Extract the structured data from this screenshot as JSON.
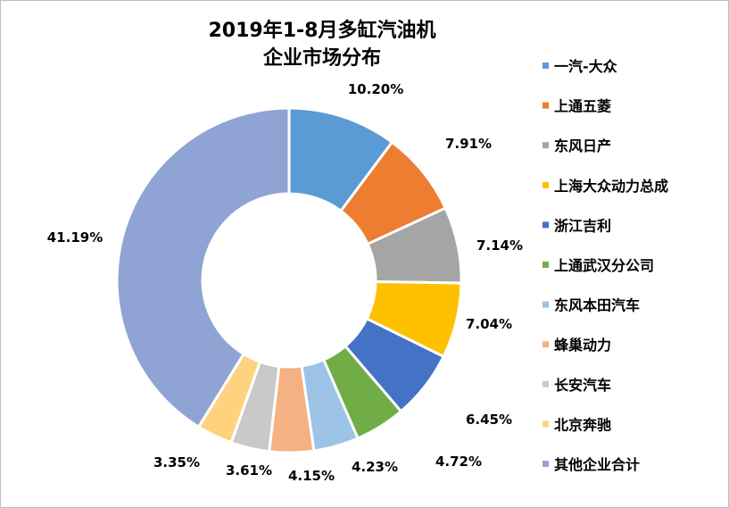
{
  "chart_data": {
    "type": "pie",
    "subtype": "donut",
    "title_line1": "2019年1-8月多缸汽油机",
    "title_line2": "企业市场分布",
    "legend_position": "right",
    "slices": [
      {
        "name": "一汽-大众",
        "value": 10.2,
        "label": "10.20%",
        "color": "#5b9bd5"
      },
      {
        "name": "上通五菱",
        "value": 7.91,
        "label": "7.91%",
        "color": "#ed7d31"
      },
      {
        "name": "东风日产",
        "value": 7.14,
        "label": "7.14%",
        "color": "#a5a5a5"
      },
      {
        "name": "上海大众动力总成",
        "value": 7.04,
        "label": "7.04%",
        "color": "#ffc000"
      },
      {
        "name": "浙江吉利",
        "value": 6.45,
        "label": "6.45%",
        "color": "#4472c4"
      },
      {
        "name": "上通武汉分公司",
        "value": 4.72,
        "label": "4.72%",
        "color": "#70ad47"
      },
      {
        "name": "东风本田汽车",
        "value": 4.23,
        "label": "4.23%",
        "color": "#9dc3e6"
      },
      {
        "name": "蜂巢动力",
        "value": 4.15,
        "label": "4.15%",
        "color": "#f4b183"
      },
      {
        "name": "长安汽车",
        "value": 3.61,
        "label": "3.61%",
        "color": "#c9c9c9"
      },
      {
        "name": "北京奔驰",
        "value": 3.35,
        "label": "3.35%",
        "color": "#ffd280"
      },
      {
        "name": "其他企业合计",
        "value": 41.19,
        "label": "41.19%",
        "color": "#8fa4d4"
      }
    ]
  }
}
